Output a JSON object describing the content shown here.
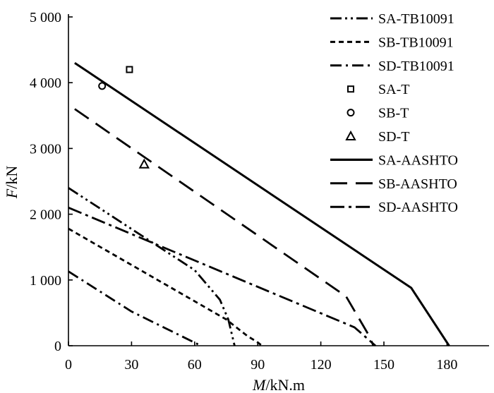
{
  "chart_data": {
    "type": "line",
    "xlabel": "M/kN.m",
    "ylabel": "F/kN",
    "xlim": [
      0,
      200
    ],
    "ylim": [
      0,
      5000
    ],
    "xticks": [
      0,
      30,
      60,
      90,
      120,
      150,
      180
    ],
    "xtick_labels": [
      "0",
      "30",
      "60",
      "90",
      "120",
      "150",
      "180"
    ],
    "yticks": [
      0,
      1000,
      2000,
      3000,
      4000,
      5000
    ],
    "ytick_labels": [
      "0",
      "1 000",
      "2 000",
      "3 000",
      "4 000",
      "5 000"
    ],
    "grid": false,
    "legend_position": "top-right",
    "series": [
      {
        "name": "SA-TB10091",
        "style": "dash-dot-dot",
        "kind": "line",
        "x": [
          0,
          60,
          72,
          76,
          79
        ],
        "y": [
          2400,
          1150,
          700,
          400,
          0
        ]
      },
      {
        "name": "SB-TB10091",
        "style": "short-dash",
        "kind": "line",
        "x": [
          0,
          75,
          85,
          90,
          92
        ],
        "y": [
          1780,
          400,
          150,
          50,
          0
        ]
      },
      {
        "name": "SD-TB10091",
        "style": "dash-dot",
        "kind": "line",
        "x": [
          0,
          30,
          63
        ],
        "y": [
          1130,
          520,
          0
        ]
      },
      {
        "name": "SA-T",
        "style": "square",
        "kind": "marker",
        "x": [
          29
        ],
        "y": [
          4200
        ]
      },
      {
        "name": "SB-T",
        "style": "circle",
        "kind": "marker",
        "x": [
          16
        ],
        "y": [
          3950
        ]
      },
      {
        "name": "SD-T",
        "style": "triangle",
        "kind": "marker",
        "x": [
          36
        ],
        "y": [
          2760
        ]
      },
      {
        "name": "SA-AASHTO",
        "style": "solid",
        "kind": "line",
        "x": [
          3,
          163,
          181
        ],
        "y": [
          4300,
          880,
          0
        ]
      },
      {
        "name": "SB-AASHTO",
        "style": "long-dash",
        "kind": "line",
        "x": [
          3,
          132,
          143,
          145
        ],
        "y": [
          3600,
          750,
          150,
          0
        ]
      },
      {
        "name": "SD-AASHTO",
        "style": "long-dash-dot",
        "kind": "line",
        "x": [
          0,
          136,
          146
        ],
        "y": [
          2100,
          280,
          0
        ]
      }
    ]
  }
}
